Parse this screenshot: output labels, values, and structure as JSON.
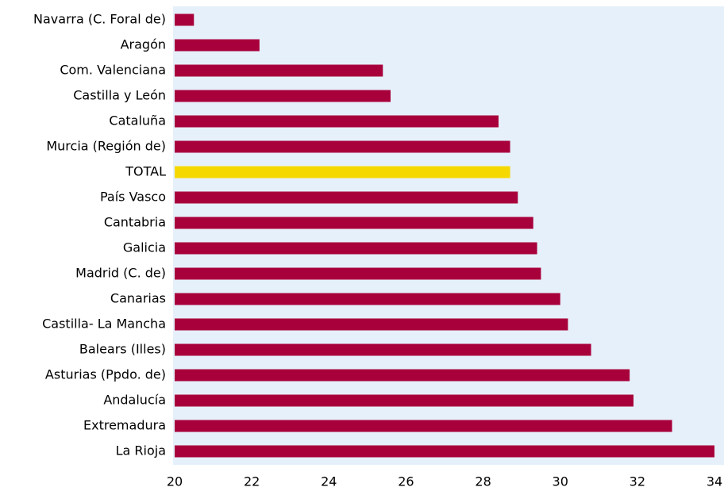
{
  "chart_data": {
    "type": "barh",
    "categories": [
      "Navarra (C. Foral de)",
      "Aragón",
      "Com. Valenciana",
      "Castilla y León",
      "Cataluña",
      "Murcia (Región de)",
      "TOTAL",
      "País Vasco",
      "Cantabria",
      "Galicia",
      "Madrid (C. de)",
      "Canarias",
      "Castilla- La Mancha",
      "Balears (Illes)",
      "Asturias (Ppdo. de)",
      "Andalucía",
      "Extremadura",
      "La Rioja"
    ],
    "values": [
      20.5,
      22.2,
      25.4,
      25.6,
      28.4,
      28.7,
      28.7,
      28.9,
      29.3,
      29.4,
      29.5,
      30.0,
      30.2,
      30.8,
      31.8,
      31.9,
      32.9,
      34.0
    ],
    "colors": [
      "#a8003b",
      "#a8003b",
      "#a8003b",
      "#a8003b",
      "#a8003b",
      "#a8003b",
      "#f5d800",
      "#a8003b",
      "#a8003b",
      "#a8003b",
      "#a8003b",
      "#a8003b",
      "#a8003b",
      "#a8003b",
      "#a8003b",
      "#a8003b",
      "#a8003b",
      "#a8003b"
    ],
    "xlim": [
      20,
      34
    ],
    "xticks": [
      20,
      22,
      24,
      26,
      28,
      30,
      32,
      34
    ]
  }
}
